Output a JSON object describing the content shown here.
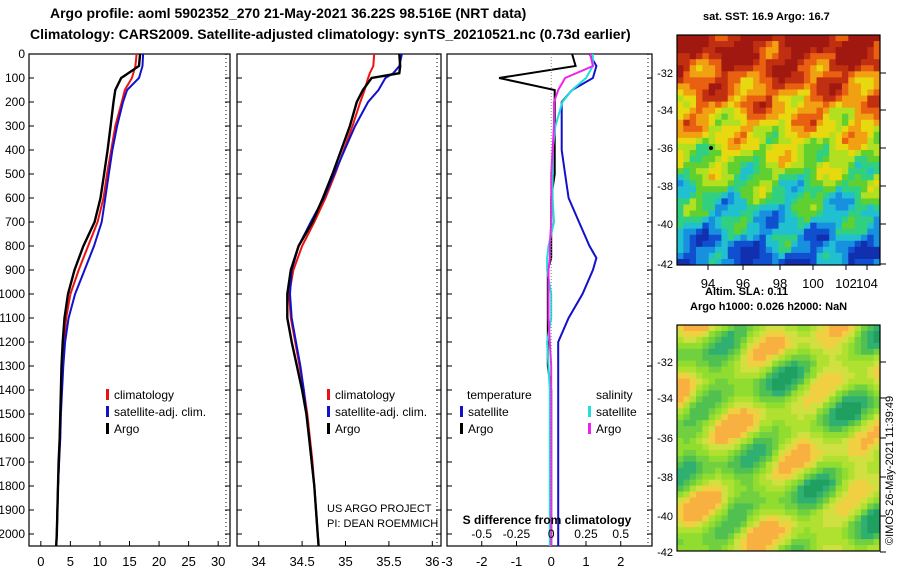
{
  "header": {
    "line1": "Argo profile: aoml 5902352_270 21-May-2021 36.22S 98.516E (NRT data)",
    "line2": "Climatology: CARS2009. Satellite-adjusted climatology: synTS_20210521.nc (0.73d earlier)"
  },
  "depth_ticks": [
    "0",
    "100",
    "200",
    "300",
    "400",
    "500",
    "600",
    "700",
    "800",
    "900",
    "1000",
    "1100",
    "1200",
    "1300",
    "1400",
    "1500",
    "1600",
    "1700",
    "1800",
    "1900",
    "2000"
  ],
  "colors": {
    "climatology": "#ee1111",
    "satellite": "#1111cc",
    "argo": "#000000",
    "sat_salinity": "#22dddd",
    "argo_salinity": "#ee22ee"
  },
  "chart_data": [
    {
      "type": "line",
      "name": "temperature",
      "xlim": [
        -2,
        32
      ],
      "ylim": [
        2050,
        0
      ],
      "xticks": [
        "0",
        "5",
        "10",
        "15",
        "20",
        "25",
        "30"
      ],
      "depth": [
        0,
        50,
        100,
        150,
        200,
        300,
        400,
        500,
        600,
        700,
        800,
        900,
        1000,
        1100,
        1200,
        1300,
        1400,
        1500,
        1600,
        1700,
        1800,
        1900,
        2000,
        2050
      ],
      "legend": [
        "climatology",
        "satellite-adj. clim.",
        "Argo"
      ],
      "series": [
        {
          "name": "climatology",
          "values": [
            16.2,
            16.0,
            15.4,
            14.2,
            13.7,
            12.6,
            11.9,
            11.2,
            10.6,
            9.6,
            8.0,
            6.4,
            5.0,
            4.3,
            3.9,
            3.7,
            3.5,
            3.3,
            3.2,
            3.1,
            2.9,
            2.8,
            2.7,
            2.6
          ]
        },
        {
          "name": "satellite-adj. clim.",
          "values": [
            17.3,
            17.2,
            16.6,
            14.6,
            13.9,
            12.9,
            12.1,
            11.5,
            10.9,
            10.3,
            9.0,
            7.4,
            5.8,
            4.7,
            4.1,
            3.8,
            3.6,
            3.4,
            3.3,
            3.1,
            2.9,
            2.8,
            2.7,
            2.6
          ]
        },
        {
          "name": "Argo",
          "values": [
            16.8,
            16.6,
            13.6,
            12.6,
            12.3,
            11.8,
            11.3,
            10.7,
            10.1,
            9.1,
            7.2,
            5.7,
            4.6,
            4.0,
            3.7,
            3.5,
            3.4,
            3.3,
            3.2,
            3.0,
            2.9,
            2.8,
            2.7,
            2.6
          ]
        }
      ]
    },
    {
      "type": "line",
      "name": "salinity",
      "xlim": [
        33.75,
        36.1
      ],
      "ylim": [
        2050,
        0
      ],
      "xticks": [
        "34",
        "34.5",
        "35",
        "35.5",
        "36"
      ],
      "depth": [
        0,
        50,
        80,
        100,
        150,
        200,
        300,
        400,
        500,
        600,
        700,
        800,
        900,
        1000,
        1100,
        1200,
        1300,
        1400,
        1500,
        1600,
        1700,
        1800,
        1900,
        2000,
        2050
      ],
      "legend": [
        "climatology",
        "satellite-adj. clim.",
        "Argo"
      ],
      "series": [
        {
          "name": "climatology",
          "values": [
            35.33,
            35.32,
            35.28,
            35.26,
            35.22,
            35.17,
            35.08,
            34.98,
            34.88,
            34.77,
            34.64,
            34.5,
            34.4,
            34.35,
            34.37,
            34.42,
            34.47,
            34.52,
            34.56,
            34.59,
            34.62,
            34.64,
            34.66,
            34.68,
            34.69
          ]
        },
        {
          "name": "satellite-adj. clim.",
          "values": [
            35.65,
            35.62,
            35.55,
            35.46,
            35.38,
            35.26,
            35.11,
            34.99,
            34.87,
            34.75,
            34.6,
            34.46,
            34.38,
            34.36,
            34.38,
            34.43,
            34.48,
            34.52,
            34.55,
            34.58,
            34.61,
            34.64,
            34.66,
            34.68,
            34.69
          ]
        },
        {
          "name": "Argo",
          "values": [
            35.62,
            35.63,
            35.62,
            35.3,
            35.2,
            35.13,
            35.05,
            34.95,
            34.85,
            34.74,
            34.62,
            34.46,
            34.37,
            34.33,
            34.33,
            34.38,
            34.44,
            34.5,
            34.55,
            34.58,
            34.61,
            34.64,
            34.66,
            34.68,
            34.69
          ]
        }
      ]
    },
    {
      "type": "line",
      "name": "difference from climatology",
      "xlim": [
        -3.0,
        2.9
      ],
      "ylim": [
        2050,
        0
      ],
      "xticks": [
        "-3",
        "-2",
        "-1",
        "0",
        "1",
        "2"
      ],
      "sticks": [
        "-0.5",
        "-0.25",
        "0",
        "0.25",
        "0.5"
      ],
      "xlabel": "S difference from climatology",
      "depth": [
        0,
        50,
        100,
        150,
        200,
        300,
        400,
        500,
        600,
        700,
        800,
        850,
        900,
        1000,
        1100,
        1200,
        1300,
        1400,
        1500,
        1600,
        1700,
        1800,
        1900,
        2000,
        2050
      ],
      "legend": {
        "temp_title": "temperature",
        "sal_title": "salinity",
        "sat": "satellite",
        "argo": "Argo"
      },
      "series": [
        {
          "name": "temperature satellite",
          "values": [
            1.1,
            1.3,
            1.2,
            0.6,
            0.3,
            0.3,
            0.3,
            0.4,
            0.5,
            0.8,
            1.1,
            1.3,
            1.2,
            0.9,
            0.5,
            0.2,
            0.2,
            0.2,
            0.2,
            0.2,
            0.2,
            0.2,
            0.2,
            0.2,
            0.2
          ]
        },
        {
          "name": "temperature Argo",
          "values": [
            0.6,
            0.7,
            -1.5,
            0.1,
            0.1,
            0.1,
            0.1,
            0.1,
            0.0,
            0.0,
            0.0,
            0.0,
            -0.1,
            -0.1,
            -0.1,
            -0.1,
            -0.1,
            0.0,
            0.0,
            0.0,
            0.0,
            0.0,
            0.0,
            0.0,
            0.0
          ]
        },
        {
          "name": "salinity satellite",
          "values": [
            0.3,
            0.3,
            0.25,
            0.15,
            0.08,
            0.03,
            0.01,
            0.01,
            0.01,
            0.02,
            -0.02,
            -0.03,
            -0.03,
            0.0,
            0.0,
            -0.03,
            -0.02,
            -0.01,
            -0.01,
            -0.01,
            -0.01,
            -0.01,
            -0.01,
            -0.01,
            -0.01
          ]
        },
        {
          "name": "salinity Argo",
          "values": [
            0.28,
            0.3,
            0.1,
            0.05,
            0.02,
            0.02,
            0.01,
            0.0,
            0.0,
            0.0,
            -0.01,
            -0.01,
            -0.02,
            -0.02,
            -0.02,
            -0.01,
            0.0,
            0.0,
            0.0,
            0.0,
            0.0,
            0.0,
            0.0,
            0.0,
            0.0
          ]
        }
      ]
    }
  ],
  "maps": {
    "sst_label": "sat. SST: 16.9 Argo: 16.7",
    "sla_label": "Altim. SLA: 0.11",
    "h_label": "Argo h1000: 0.026 h2000: NaN",
    "lat_ticks": [
      "-32",
      "-34",
      "-36",
      "-38",
      "-40",
      "-42"
    ],
    "lon_ticks": [
      "94",
      "96",
      "98",
      "100",
      "102",
      "104"
    ]
  },
  "annotations": {
    "project": "US ARGO PROJECT",
    "pi": "PI: DEAN ROEMMICH",
    "credit": "©IMOS 26-May-2021 11:39:49"
  }
}
